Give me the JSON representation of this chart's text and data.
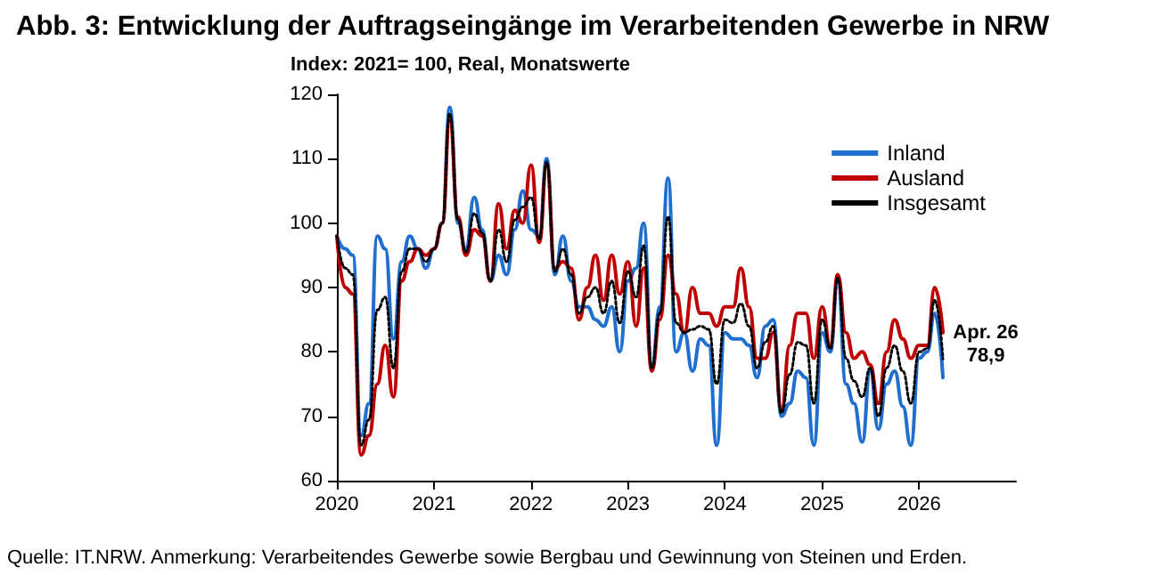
{
  "chart_data": {
    "type": "line",
    "title": "Abb. 3: Entwicklung der Auftragseingänge im Verarbeitenden Gewerbe in NRW",
    "subtitle": "Index: 2021= 100, Real, Monatswerte",
    "x": [
      "2020-01",
      "2020-02",
      "2020-03",
      "2020-04",
      "2020-05",
      "2020-06",
      "2020-07",
      "2020-08",
      "2020-09",
      "2020-10",
      "2020-11",
      "2020-12",
      "2021-01",
      "2021-02",
      "2021-03",
      "2021-04",
      "2021-05",
      "2021-06",
      "2021-07",
      "2021-08",
      "2021-09",
      "2021-10",
      "2021-11",
      "2021-12",
      "2022-01",
      "2022-02",
      "2022-03",
      "2022-04",
      "2022-05",
      "2022-06",
      "2022-07",
      "2022-08",
      "2022-09",
      "2022-10",
      "2022-11",
      "2022-12",
      "2023-01",
      "2023-02",
      "2023-03",
      "2023-04",
      "2023-05",
      "2023-06",
      "2023-07",
      "2023-08",
      "2023-09",
      "2023-10",
      "2023-11",
      "2023-12",
      "2024-01",
      "2024-02",
      "2024-03",
      "2024-04",
      "2024-05",
      "2024-06",
      "2024-07",
      "2024-08",
      "2024-09",
      "2024-10",
      "2024-11",
      "2024-12",
      "2025-01",
      "2025-02",
      "2025-03",
      "2025-04",
      "2025-05",
      "2025-06",
      "2025-07",
      "2025-08",
      "2025-09",
      "2025-10",
      "2025-11",
      "2025-12",
      "2026-01",
      "2026-02",
      "2026-03",
      "2026-04"
    ],
    "series": [
      {
        "name": "Inland",
        "color": "#1f6fd0",
        "line_style": "solid",
        "values": [
          98,
          96,
          95,
          67,
          72,
          98,
          96,
          82,
          94,
          98,
          96,
          93,
          96,
          100,
          118,
          100,
          96,
          104,
          99,
          91,
          95,
          92,
          99,
          105,
          99,
          98,
          110,
          92,
          98,
          91,
          87,
          87,
          85,
          84,
          87,
          80,
          91,
          93,
          100,
          78,
          87,
          107,
          80,
          83,
          77,
          82,
          81,
          65.5,
          83,
          82,
          82,
          81,
          76,
          84,
          85,
          70,
          72,
          77,
          76,
          65.5,
          83,
          80,
          91,
          75,
          72,
          66,
          77,
          68,
          75,
          77,
          71.5,
          65.5,
          79,
          80,
          86,
          76
        ]
      },
      {
        "name": "Ausland",
        "color": "#c00000",
        "line_style": "solid",
        "values": [
          98,
          90,
          89,
          64,
          67,
          75,
          81,
          73,
          91,
          94,
          96,
          95,
          96,
          100,
          116,
          101,
          95,
          99,
          98,
          91,
          103,
          96,
          102,
          100,
          109,
          97,
          109,
          93,
          94,
          93,
          85,
          90,
          95,
          88,
          95,
          89,
          94,
          84,
          93,
          77,
          85,
          95,
          89,
          83,
          90,
          86,
          86,
          84,
          87,
          87,
          93,
          87,
          79,
          79,
          83,
          71,
          81,
          86,
          86,
          79,
          87,
          81,
          92,
          83,
          79,
          80,
          78,
          72,
          80,
          85,
          82,
          79,
          81,
          81,
          90,
          83
        ]
      },
      {
        "name": "Insgesamt",
        "color": "#000000",
        "line_style": "dotted",
        "values": [
          98,
          93,
          92,
          65.5,
          69.5,
          86.5,
          88.5,
          77.5,
          92.5,
          96,
          96,
          94,
          96,
          100,
          117,
          100.5,
          95.5,
          101.5,
          98.5,
          91,
          99,
          94,
          100.5,
          102.5,
          104,
          97.5,
          109.5,
          92.5,
          96,
          92,
          86,
          88.5,
          90,
          86,
          91,
          84.5,
          92.5,
          88.5,
          96.5,
          77.5,
          86,
          101,
          84.5,
          83,
          83.5,
          84,
          83.5,
          75,
          85,
          84.5,
          87.5,
          84,
          77.5,
          81.5,
          84,
          70.5,
          76.5,
          81.5,
          81,
          72,
          85,
          80.5,
          91.5,
          79,
          75.5,
          73,
          77.5,
          70,
          77.5,
          81,
          77,
          72,
          80,
          80.5,
          88,
          78.9
        ]
      }
    ],
    "xlim": [
      "2020-01",
      "2027-01"
    ],
    "xticks": [
      "2020",
      "2021",
      "2022",
      "2023",
      "2024",
      "2025",
      "2026"
    ],
    "ylim": [
      60,
      120
    ],
    "yticks": [
      60,
      70,
      80,
      90,
      100,
      110,
      120
    ],
    "grid": false,
    "legend": "top right",
    "marker": "none",
    "annotations": [
      {
        "text": "Apr. 26\n78,9",
        "x": "2026-04",
        "y": 78.9
      },
      "Quelle: IT.NRW. Anmerkung: Verarbeitendes Gewerbe sowie Bergbau und Gewinnung von Steinen und Erden."
    ]
  }
}
